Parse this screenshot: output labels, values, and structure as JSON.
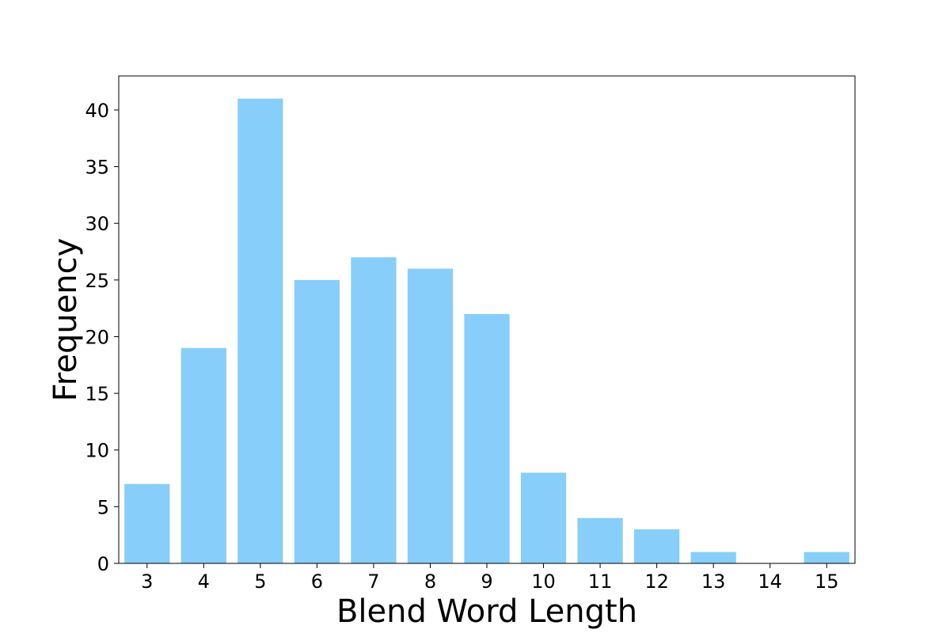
{
  "chart_data": {
    "type": "bar",
    "title": "",
    "xlabel": "Blend Word Length",
    "ylabel": "Frequency",
    "categories": [
      "3",
      "4",
      "5",
      "6",
      "7",
      "8",
      "9",
      "10",
      "11",
      "12",
      "13",
      "14",
      "15"
    ],
    "x": [
      3,
      4,
      5,
      6,
      7,
      8,
      9,
      10,
      11,
      12,
      13,
      14,
      15
    ],
    "values": [
      7,
      19,
      41,
      25,
      27,
      26,
      22,
      8,
      4,
      3,
      1,
      0,
      1
    ],
    "xlim": [
      2.5,
      15.5
    ],
    "ylim": [
      0,
      43
    ],
    "yticks": [
      0,
      5,
      10,
      15,
      20,
      25,
      30,
      35,
      40
    ],
    "grid": false,
    "legend": "none",
    "bar_color": "#87CEFA"
  }
}
